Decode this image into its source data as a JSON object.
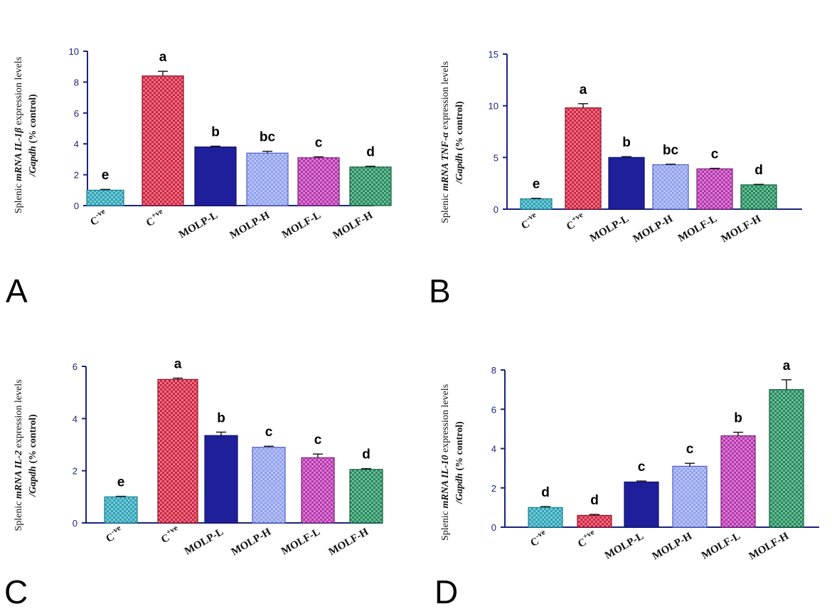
{
  "figure": {
    "categories": [
      {
        "base": "C",
        "sup": "-ve"
      },
      {
        "base": "C",
        "sup": "+ve"
      },
      {
        "base": "MOLP-L",
        "sup": ""
      },
      {
        "base": "MOLP-H",
        "sup": ""
      },
      {
        "base": "MOLF-L",
        "sup": ""
      },
      {
        "base": "MOLF-H",
        "sup": ""
      }
    ],
    "bar_colors": [
      "#2aa4b8",
      "#d4213d",
      "#1f1f9c",
      "#8fa0ef",
      "#b832b0",
      "#1f8c5a"
    ],
    "bar_edge_colors": [
      "#1b7f8f",
      "#8e1028",
      "#12126a",
      "#4f5fc8",
      "#7d1f78",
      "#135e3b"
    ]
  },
  "chart_data": [
    {
      "panel": "A",
      "type": "bar",
      "categories": [
        "C-ve",
        "C+ve",
        "MOLP-L",
        "MOLP-H",
        "MOLF-L",
        "MOLF-H"
      ],
      "values": [
        1.0,
        8.4,
        3.8,
        3.4,
        3.1,
        2.5
      ],
      "errors": [
        0.05,
        0.3,
        0.05,
        0.12,
        0.06,
        0.05
      ],
      "significance": [
        "e",
        "a",
        "b",
        "bc",
        "c",
        "d"
      ],
      "ylim": [
        0,
        10
      ],
      "yticks": [
        0,
        2,
        4,
        6,
        8,
        10
      ],
      "ylabel": {
        "line1_pre": "Splenic ",
        "line1_it": "mRNA IL-1β",
        "line1_post": " expression levels",
        "line2_it": "/Gapdh",
        "line2_post": " (% control)"
      }
    },
    {
      "panel": "B",
      "type": "bar",
      "categories": [
        "C-ve",
        "C+ve",
        "MOLP-L",
        "MOLP-H",
        "MOLF-L",
        "MOLF-H"
      ],
      "values": [
        1.0,
        9.8,
        5.0,
        4.3,
        3.9,
        2.35
      ],
      "errors": [
        0.05,
        0.4,
        0.08,
        0.05,
        0.05,
        0.05
      ],
      "significance": [
        "e",
        "a",
        "b",
        "bc",
        "c",
        "d"
      ],
      "ylim": [
        0,
        15
      ],
      "yticks": [
        0,
        5,
        10,
        15
      ],
      "ylabel": {
        "line1_pre": "Splenic ",
        "line1_it": "mRNA TNF-α",
        "line1_post": " expression levels",
        "line2_it": "/Gapdh",
        "line2_post": " (% control)"
      }
    },
    {
      "panel": "C",
      "type": "bar",
      "categories": [
        "C-ve",
        "C+ve",
        "MOLP-L",
        "MOLP-H",
        "MOLF-L",
        "MOLF-H"
      ],
      "values": [
        1.0,
        5.5,
        3.35,
        2.9,
        2.5,
        2.05
      ],
      "errors": [
        0.02,
        0.05,
        0.13,
        0.04,
        0.14,
        0.03
      ],
      "significance": [
        "e",
        "a",
        "b",
        "c",
        "c",
        "d"
      ],
      "ylim": [
        0,
        6
      ],
      "yticks": [
        0,
        2,
        4,
        6
      ],
      "ylabel": {
        "line1_pre": "Splenic ",
        "line1_it": "mRNA IL-2",
        "line1_post": " expression levels",
        "line2_it": "/Gapdh",
        "line2_post": " (% control)"
      }
    },
    {
      "panel": "D",
      "type": "bar",
      "categories": [
        "C-ve",
        "C+ve",
        "MOLP-L",
        "MOLP-H",
        "MOLF-L",
        "MOLF-H"
      ],
      "values": [
        1.0,
        0.6,
        2.3,
        3.1,
        4.65,
        7.0
      ],
      "errors": [
        0.05,
        0.05,
        0.05,
        0.15,
        0.18,
        0.5
      ],
      "significance": [
        "d",
        "d",
        "c",
        "c",
        "b",
        "a"
      ],
      "ylim": [
        0,
        8
      ],
      "yticks": [
        0,
        2,
        4,
        6,
        8
      ],
      "ylabel": {
        "line1_pre": "Splenic ",
        "line1_it": "mRNA IL-10",
        "line1_post": " expression levels",
        "line2_it": "/Gapdh",
        "line2_post": " (% control)"
      }
    }
  ]
}
